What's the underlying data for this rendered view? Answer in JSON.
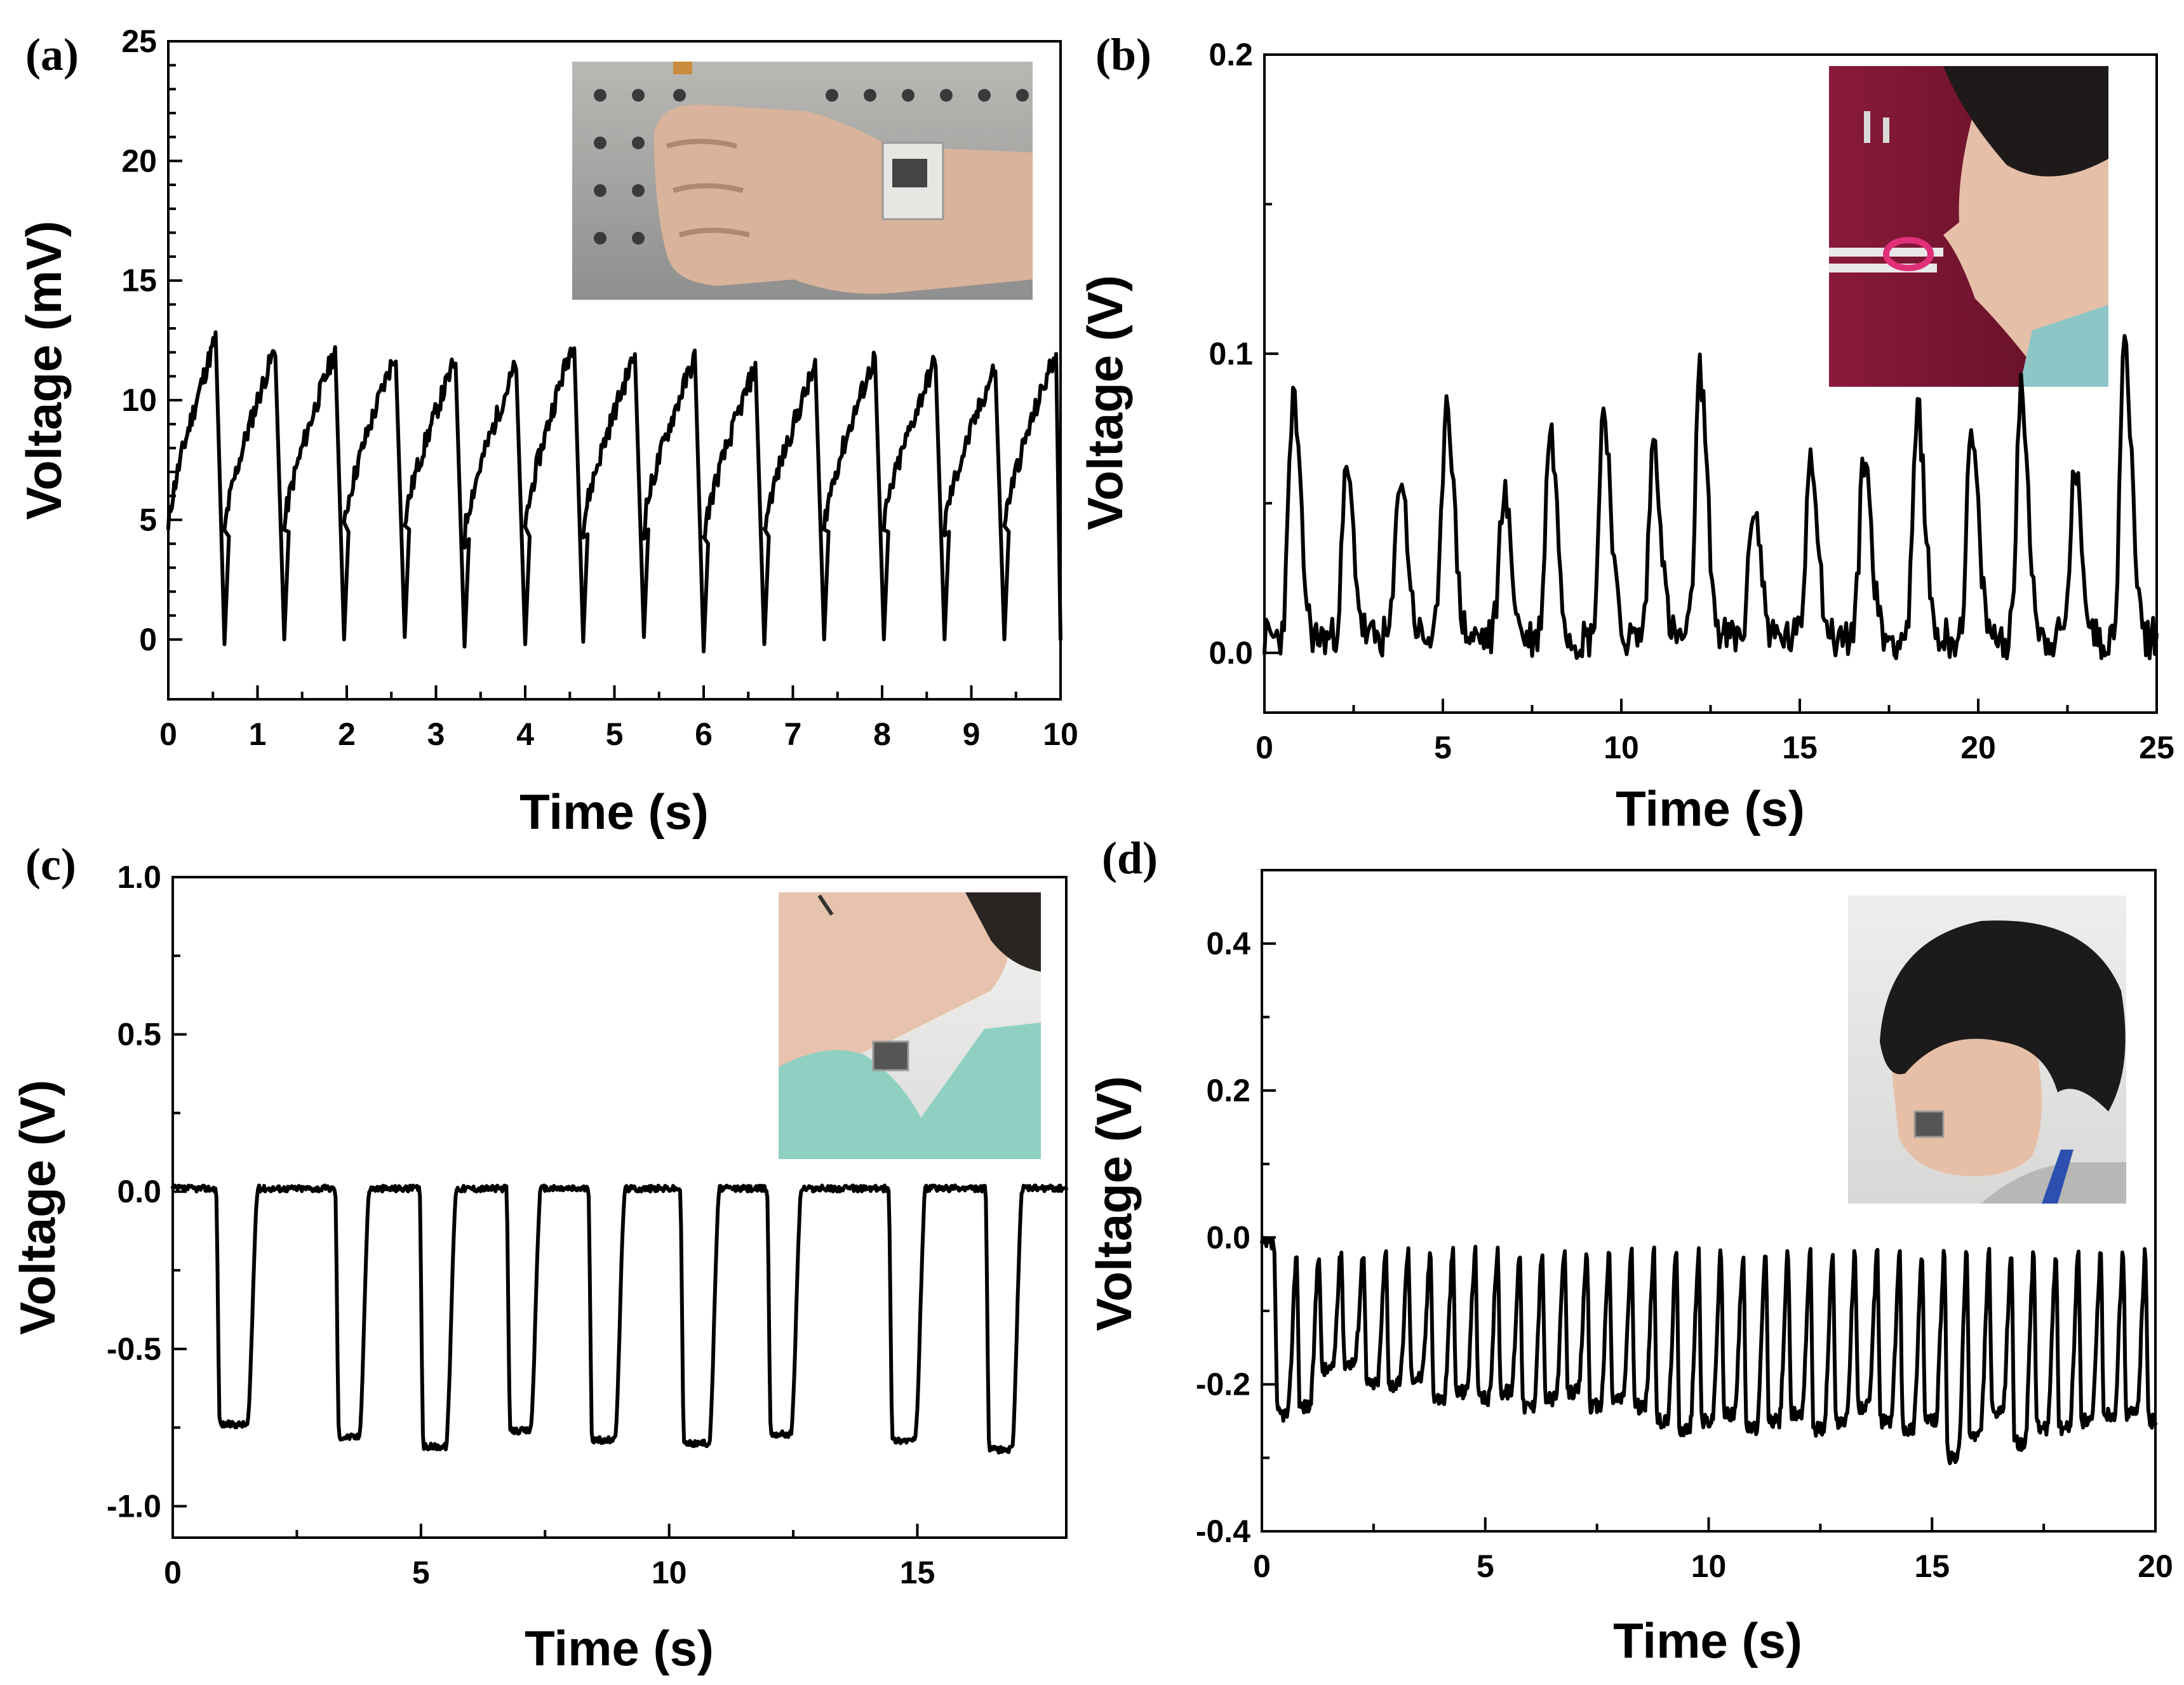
{
  "chart_data": [
    {
      "panel_label": "(a)",
      "type": "line",
      "xlabel": "Time (s)",
      "ylabel": "Voltage (mV)",
      "xlim": [
        0,
        10
      ],
      "ylim": [
        -2.5,
        25
      ],
      "xticks": [
        "0",
        "1",
        "2",
        "3",
        "4",
        "5",
        "6",
        "7",
        "8",
        "9",
        "10"
      ],
      "yticks": [
        "0",
        "5",
        "10",
        "15",
        "20",
        "25"
      ],
      "inset": "photo of sensor on wrist",
      "series": [
        {
          "pattern": "sawtooth",
          "period": 0.67,
          "peak_times": [
            0.53,
            1.2,
            1.87,
            2.55,
            3.22,
            3.9,
            4.55,
            5.23,
            5.9,
            6.58,
            7.25,
            7.92,
            8.6,
            9.27,
            9.95
          ],
          "peak_values": [
            12.6,
            12.2,
            12.1,
            12.0,
            11.7,
            11.5,
            12.6,
            11.9,
            11.8,
            11.4,
            11.4,
            11.8,
            11.7,
            11.4,
            12.0
          ],
          "trough_values": [
            -0.2,
            0.0,
            0.0,
            0.1,
            -0.3,
            -0.2,
            -0.1,
            0.1,
            -0.5,
            -0.2,
            0.0,
            0.0,
            0.0,
            0.0,
            0.0
          ],
          "start_value": 4.5
        }
      ]
    },
    {
      "panel_label": "(b)",
      "type": "line",
      "xlabel": "Time (s)",
      "ylabel": "Voltage (V)",
      "xlim": [
        0,
        25
      ],
      "ylim": [
        -0.02,
        0.2
      ],
      "xticks": [
        "0",
        "5",
        "10",
        "15",
        "20",
        "25"
      ],
      "yticks": [
        "0.0",
        "0.1",
        "0.2"
      ],
      "inset": "photo of sensor at nostril",
      "series": [
        {
          "pattern": "spikes",
          "baseline": 0.005,
          "peak_times": [
            0.8,
            2.3,
            3.8,
            5.1,
            6.7,
            8.0,
            9.5,
            10.9,
            12.2,
            13.7,
            15.3,
            16.8,
            18.3,
            19.8,
            21.2,
            22.7,
            24.1
          ],
          "peak_values": [
            0.085,
            0.06,
            0.06,
            0.086,
            0.054,
            0.075,
            0.082,
            0.071,
            0.094,
            0.05,
            0.068,
            0.066,
            0.08,
            0.072,
            0.087,
            0.06,
            0.103
          ]
        }
      ]
    },
    {
      "panel_label": "(c)",
      "type": "line",
      "xlabel": "Time (s)",
      "ylabel": "Voltage (V)",
      "xlim": [
        0,
        18
      ],
      "ylim": [
        -1.1,
        1.0
      ],
      "xticks": [
        "0",
        "5",
        "10",
        "15"
      ],
      "yticks": [
        "-1.0",
        "-0.5",
        "0.0",
        "0.5",
        "1.0"
      ],
      "inset": "photo of sensor on throat",
      "series": [
        {
          "pattern": "square_dips",
          "baseline": 0.01,
          "dips": [
            [
              0.95,
              1.5
            ],
            [
              3.35,
              3.75
            ],
            [
              5.05,
              5.5
            ],
            [
              6.8,
              7.2
            ],
            [
              8.45,
              8.9
            ],
            [
              10.3,
              10.8
            ],
            [
              12.05,
              12.45
            ],
            [
              14.5,
              14.95
            ],
            [
              16.45,
              16.9
            ]
          ],
          "dip_values": [
            -0.74,
            -0.78,
            -0.81,
            -0.76,
            -0.79,
            -0.8,
            -0.77,
            -0.79,
            -0.82
          ]
        }
      ]
    },
    {
      "panel_label": "(d)",
      "type": "line",
      "xlabel": "Time (s)",
      "ylabel": "Voltage (V)",
      "xlim": [
        0,
        20
      ],
      "ylim": [
        -0.4,
        0.5
      ],
      "xticks": [
        "0",
        "5",
        "10",
        "15",
        "20"
      ],
      "yticks": [
        "-0.4",
        "-0.2",
        "0.0",
        "0.2",
        "0.4"
      ],
      "inset": "photo of sensor on cheek",
      "series": [
        {
          "pattern": "square_dips",
          "baseline": -0.01,
          "period": 0.5,
          "dip_values": [
            -0.24,
            -0.23,
            -0.18,
            -0.17,
            -0.2,
            -0.2,
            -0.19,
            -0.22,
            -0.21,
            -0.22,
            -0.21,
            -0.23,
            -0.22,
            -0.21,
            -0.23,
            -0.22,
            -0.23,
            -0.25,
            -0.26,
            -0.25,
            -0.24,
            -0.26,
            -0.25,
            -0.24,
            -0.26,
            -0.25,
            -0.23,
            -0.25,
            -0.26,
            -0.25,
            -0.3,
            -0.27,
            -0.24,
            -0.28,
            -0.26,
            -0.26,
            -0.25,
            -0.24,
            -0.24,
            -0.25
          ]
        }
      ]
    }
  ]
}
